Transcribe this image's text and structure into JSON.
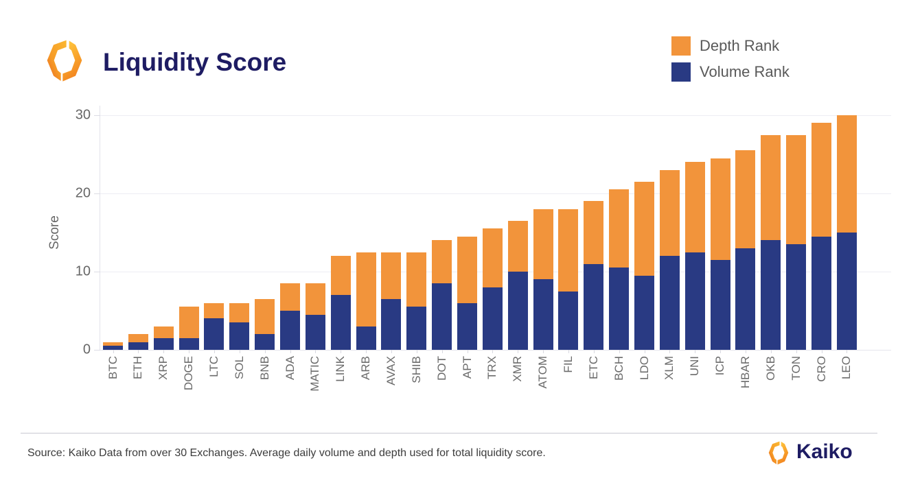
{
  "header": {
    "title": "Liquidity Score"
  },
  "legend": {
    "items": [
      {
        "label": "Depth Rank",
        "color": "#F2943B"
      },
      {
        "label": "Volume Rank",
        "color": "#293A83"
      }
    ]
  },
  "chart_data": {
    "type": "bar",
    "stacked": true,
    "title": "Liquidity Score",
    "xlabel": "",
    "ylabel": "Score",
    "ylim": [
      0,
      30
    ],
    "yticks": [
      0,
      10,
      20,
      30
    ],
    "grid": true,
    "legend_position": "top-right",
    "categories": [
      "BTC",
      "ETH",
      "XRP",
      "DOGE",
      "LTC",
      "SOL",
      "BNB",
      "ADA",
      "MATIC",
      "LINK",
      "ARB",
      "AVAX",
      "SHIB",
      "DOT",
      "APT",
      "TRX",
      "XMR",
      "ATOM",
      "FIL",
      "ETC",
      "BCH",
      "LDO",
      "XLM",
      "UNI",
      "ICP",
      "HBAR",
      "OKB",
      "TON",
      "CRO",
      "LEO"
    ],
    "series": [
      {
        "name": "Volume Rank",
        "color": "#293A83",
        "stack_order": "bottom",
        "values": [
          0.5,
          1,
          1.5,
          1.5,
          4,
          3.5,
          2,
          5,
          4.5,
          7,
          3,
          6.5,
          5.5,
          8.5,
          6,
          8,
          10,
          9,
          7.5,
          11,
          10.5,
          9.5,
          12,
          12.5,
          11.5,
          13,
          14,
          13.5,
          14.5,
          15
        ]
      },
      {
        "name": "Depth Rank",
        "color": "#F2943B",
        "stack_order": "top",
        "values": [
          0.5,
          1,
          1.5,
          4,
          2,
          2.5,
          4.5,
          3.5,
          4,
          5,
          9.5,
          6,
          7,
          5.5,
          8.5,
          7.5,
          6.5,
          9,
          10.5,
          8,
          10,
          12,
          11,
          11.5,
          13,
          12.5,
          13.5,
          14,
          14.5,
          15
        ]
      }
    ]
  },
  "footer": {
    "source": "Source: Kaiko Data from over 30 Exchanges. Average daily volume and depth used for total liquidity score.",
    "brand": "Kaiko"
  }
}
